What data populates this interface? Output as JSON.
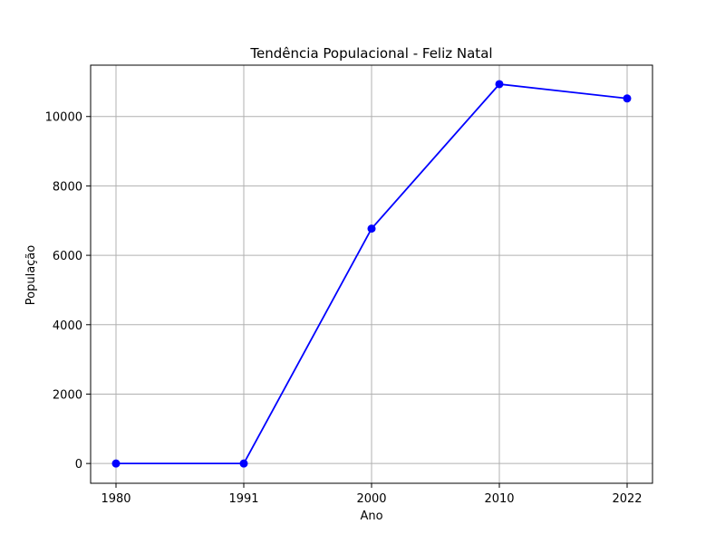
{
  "chart_data": {
    "type": "line",
    "title": "Tendência Populacional - Feliz Natal",
    "xlabel": "Ano",
    "ylabel": "População",
    "categories": [
      "1980",
      "1991",
      "2000",
      "2010",
      "2022"
    ],
    "series": [
      {
        "values": [
          0,
          0,
          6769,
          10933,
          10521
        ],
        "color": "#0000ff",
        "marker": "circle"
      }
    ],
    "y_ticks": [
      0,
      2000,
      4000,
      6000,
      8000,
      10000
    ],
    "ylim": [
      -570,
      11480
    ],
    "grid": true,
    "grid_color": "#b0b0b0"
  }
}
